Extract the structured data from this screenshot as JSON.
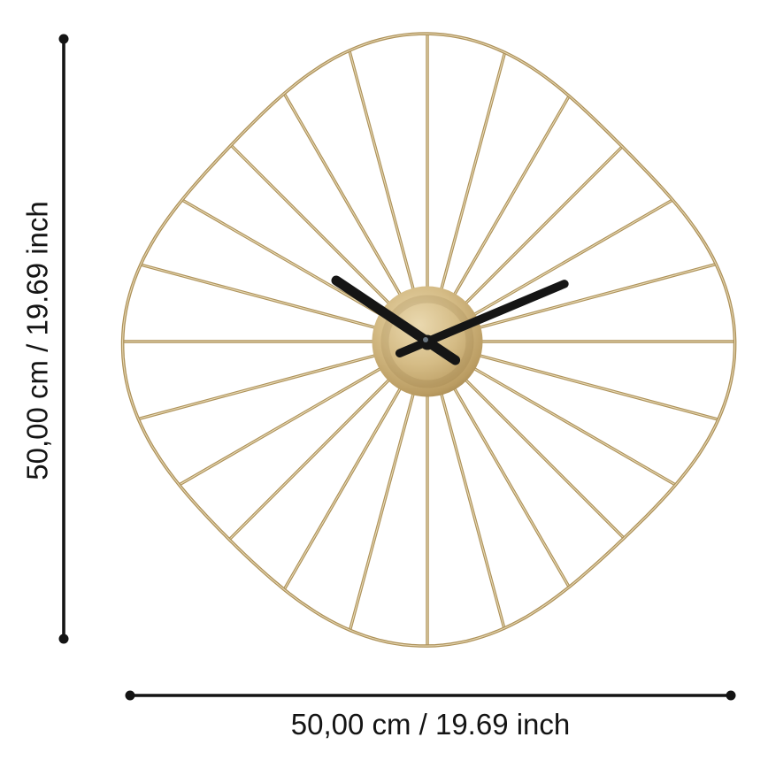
{
  "diagram": {
    "title": "Wall clock dimension diagram",
    "product": "gold wire wall clock",
    "width_label": "50,00 cm / 19.69 inch",
    "height_label": "50,00 cm / 19.69 inch"
  },
  "clock": {
    "spoke_count": 24,
    "approx_time": "10:10",
    "colors": {
      "background": "#ffffff",
      "wire_gold": "#ad9159",
      "wire_highlight": "#ecdfbc",
      "cap_light": "#ead9b0",
      "cap_mid": "#d5bc86",
      "cap_gold": "#ba9c62",
      "cap_dark": "#8f723c",
      "hands_black": "#151515",
      "hub_highlight": "#7a8894",
      "dimension_black": "#141414"
    }
  }
}
